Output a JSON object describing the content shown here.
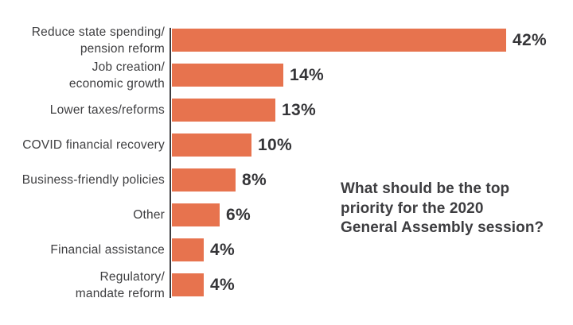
{
  "chart_data": {
    "type": "bar",
    "orientation": "horizontal",
    "categories": [
      "Reduce state spending/\npension reform",
      "Job creation/\neconomic growth",
      "Lower taxes/reforms",
      "COVID financial recovery",
      "Business-friendly policies",
      "Other",
      "Financial assistance",
      "Regulatory/\nmandate reform"
    ],
    "values": [
      42,
      14,
      13,
      10,
      8,
      6,
      4,
      4
    ],
    "value_labels": [
      "42%",
      "14%",
      "13%",
      "10%",
      "8%",
      "6%",
      "4%",
      "4%"
    ],
    "title": "",
    "xlabel": "",
    "ylabel": "",
    "xlim": [
      0,
      42
    ],
    "grid": false,
    "legend": "none",
    "annotation": "What should be the top\npriority for the 2020\nGeneral Assembly session?",
    "colors": {
      "bar": "#e7734e",
      "axis": "#3d3d40",
      "category_label": "#3e3e40",
      "value_label": "#353538",
      "annotation": "#3d3d40",
      "background": "#ffffff"
    }
  }
}
